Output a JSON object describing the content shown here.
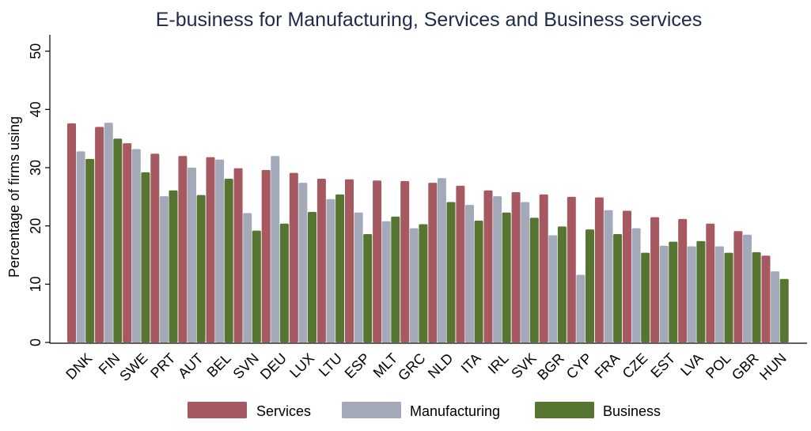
{
  "chart_data": {
    "type": "bar",
    "title": "E-business for Manufacturing, Services and Business services",
    "xlabel": "",
    "ylabel": "Percentage of firms using",
    "ylim": [
      0,
      50
    ],
    "yticks": [
      0,
      10,
      20,
      30,
      40,
      50
    ],
    "grid": false,
    "legend_position": "bottom",
    "categories": [
      "DNK",
      "FIN",
      "SWE",
      "PRT",
      "AUT",
      "BEL",
      "SVN",
      "DEU",
      "LUX",
      "LTU",
      "ESP",
      "MLT",
      "GRC",
      "NLD",
      "ITA",
      "IRL",
      "SVK",
      "BGR",
      "CYP",
      "FRA",
      "CZE",
      "EST",
      "LVA",
      "POL",
      "GBR",
      "HUN"
    ],
    "series": [
      {
        "name": "Services",
        "color": "#a65960",
        "values": [
          37.6,
          37.0,
          34.2,
          32.4,
          32.0,
          31.8,
          29.9,
          29.6,
          29.1,
          28.1,
          28.0,
          27.8,
          27.7,
          27.4,
          26.9,
          26.1,
          25.8,
          25.4,
          25.0,
          24.9,
          22.6,
          21.5,
          21.2,
          20.4,
          19.1,
          14.9
        ]
      },
      {
        "name": "Manufacturing",
        "color": "#a3a9b8",
        "values": [
          32.8,
          37.7,
          33.2,
          25.1,
          30.0,
          31.4,
          22.2,
          32.0,
          27.4,
          24.6,
          22.3,
          20.8,
          19.6,
          28.2,
          23.6,
          25.1,
          24.1,
          18.4,
          11.6,
          22.7,
          19.6,
          16.6,
          16.5,
          16.5,
          18.5,
          12.2
        ]
      },
      {
        "name": "Business",
        "color": "#557530",
        "values": [
          31.5,
          35.0,
          29.2,
          26.1,
          25.3,
          28.1,
          19.2,
          20.4,
          22.4,
          25.4,
          18.6,
          21.6,
          20.3,
          24.1,
          20.9,
          22.3,
          21.4,
          19.9,
          19.4,
          18.6,
          15.4,
          17.3,
          17.4,
          15.4,
          15.5,
          10.9
        ]
      }
    ]
  }
}
